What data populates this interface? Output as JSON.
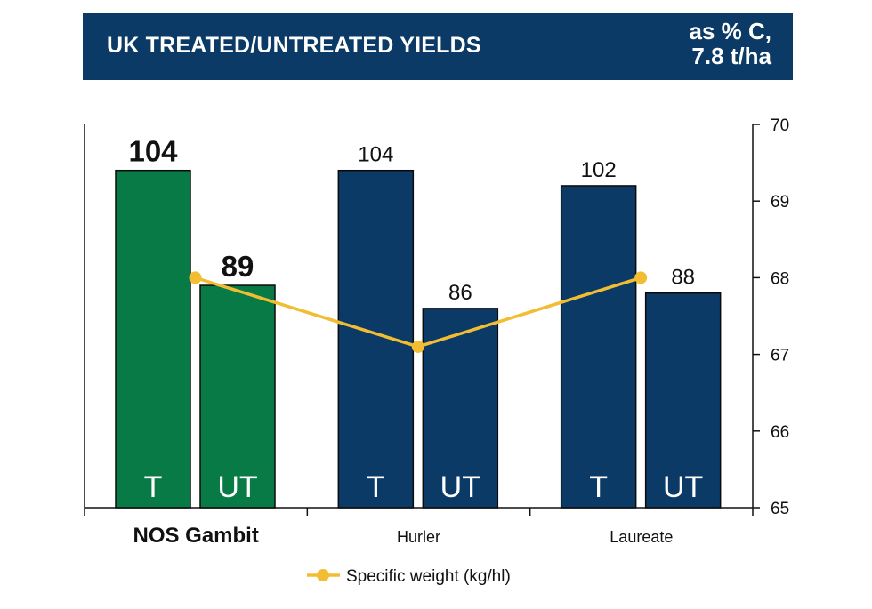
{
  "header": {
    "title": "UK TREATED/UNTREATED YIELDS",
    "unit_line1": "as % C,",
    "unit_line2": "7.8 t/ha"
  },
  "chart_data": {
    "type": "bar",
    "title": "UK TREATED/UNTREATED YIELDS",
    "groups": [
      "NOS Gambit",
      "Hurler",
      "Laureate"
    ],
    "bar_labels": [
      "T",
      "UT"
    ],
    "series": [
      {
        "name": "Treated (T)",
        "values": [
          104,
          104,
          102
        ]
      },
      {
        "name": "Untreated (UT)",
        "values": [
          89,
          86,
          88
        ]
      }
    ],
    "left_ylim": [
      60,
      110
    ],
    "line_series": {
      "name": "Specific weight (kg/hl)",
      "values": [
        68,
        67.1,
        68
      ],
      "axis": "right",
      "ylim": [
        65,
        70
      ],
      "ticks": [
        65,
        66,
        67,
        68,
        69,
        70
      ]
    },
    "highlight_group": "NOS Gambit",
    "colors": {
      "highlight": "#087a45",
      "default": "#0b3a66",
      "line": "#f2bd33",
      "header": "#0b3a66"
    },
    "legend": {
      "label": "Specific weight (kg/hl)",
      "placement": "bottom-center"
    }
  }
}
